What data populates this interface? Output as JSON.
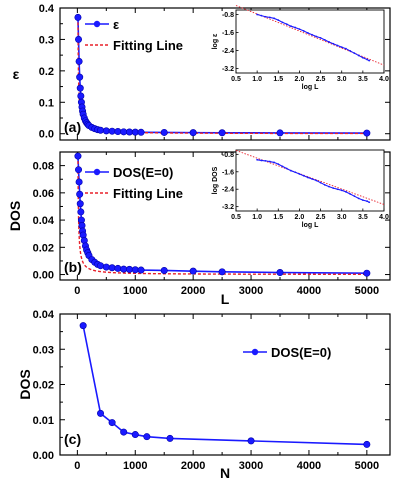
{
  "chart_data": [
    {
      "id": "a",
      "type": "line",
      "panel_label": "(a)",
      "ylabel": "ε",
      "xlabel": "",
      "xlim": [
        -300,
        5400
      ],
      "ylim": [
        -0.02,
        0.4
      ],
      "xticks": [
        0,
        500,
        1000,
        1500,
        2000,
        2500,
        3000,
        3500,
        4000,
        4500,
        5000
      ],
      "yticks": [
        0.0,
        0.1,
        0.2,
        0.3,
        0.4
      ],
      "xtick_labels_shown": false,
      "ytick_decimals": 1,
      "legend": [
        "ε",
        "Fitting Line"
      ],
      "colors": {
        "data": "#1a1aff",
        "fit": "#e8202a"
      },
      "series": [
        {
          "name": "ε",
          "x": [
            10,
            20,
            30,
            40,
            50,
            60,
            70,
            80,
            90,
            100,
            120,
            140,
            160,
            180,
            200,
            250,
            300,
            350,
            400,
            500,
            600,
            700,
            800,
            900,
            1000,
            1100,
            1500,
            2000,
            2500,
            3500,
            5000
          ],
          "values": [
            0.37,
            0.3,
            0.23,
            0.18,
            0.145,
            0.12,
            0.1,
            0.085,
            0.072,
            0.062,
            0.05,
            0.041,
            0.035,
            0.03,
            0.026,
            0.02,
            0.016,
            0.013,
            0.011,
            0.009,
            0.008,
            0.007,
            0.006,
            0.0055,
            0.005,
            0.0045,
            0.004,
            0.0035,
            0.003,
            0.0025,
            0.002
          ]
        }
      ],
      "fit_model": {
        "a": 3.7,
        "p": 1.0,
        "x_from": 10,
        "x_to": 5000
      },
      "inset": {
        "xlabel": "log L",
        "ylabel": "log ε",
        "xlim": [
          0.5,
          4.0
        ],
        "ylim": [
          -3.4,
          -0.6
        ],
        "xticks": [
          0.5,
          1.0,
          1.5,
          2.0,
          2.5,
          3.0,
          3.5,
          4.0
        ],
        "yticks": [
          -0.8,
          -1.6,
          -2.4,
          -3.2
        ],
        "points": [
          [
            1.0,
            -0.8
          ],
          [
            1.1,
            -0.85
          ],
          [
            1.2,
            -0.9
          ],
          [
            1.3,
            -0.93
          ],
          [
            1.4,
            -0.97
          ],
          [
            1.5,
            -1.05
          ],
          [
            1.6,
            -1.15
          ],
          [
            1.7,
            -1.23
          ],
          [
            1.8,
            -1.32
          ],
          [
            1.9,
            -1.38
          ],
          [
            2.0,
            -1.45
          ],
          [
            2.1,
            -1.53
          ],
          [
            2.2,
            -1.62
          ],
          [
            2.3,
            -1.7
          ],
          [
            2.4,
            -1.78
          ],
          [
            2.5,
            -1.84
          ],
          [
            2.6,
            -1.93
          ],
          [
            2.7,
            -2.02
          ],
          [
            2.8,
            -2.1
          ],
          [
            2.9,
            -2.18
          ],
          [
            3.0,
            -2.25
          ],
          [
            3.1,
            -2.32
          ],
          [
            3.2,
            -2.42
          ],
          [
            3.3,
            -2.52
          ],
          [
            3.4,
            -2.62
          ],
          [
            3.5,
            -2.72
          ],
          [
            3.6,
            -2.8
          ],
          [
            3.65,
            -2.85
          ]
        ],
        "fit": [
          [
            0.5,
            -0.4
          ],
          [
            4.0,
            -3.05
          ]
        ]
      }
    },
    {
      "id": "b",
      "type": "line",
      "panel_label": "(b)",
      "ylabel": "DOS",
      "xlabel": "L",
      "xlim": [
        -300,
        5400
      ],
      "ylim": [
        -0.004,
        0.09
      ],
      "xticks": [
        0,
        500,
        1000,
        1500,
        2000,
        2500,
        3000,
        3500,
        4000,
        4500,
        5000
      ],
      "xtick_labels": [
        "0",
        "1000",
        "2000",
        "3000",
        "4000",
        "5000"
      ],
      "yticks": [
        0.0,
        0.02,
        0.04,
        0.06,
        0.08
      ],
      "ytick_decimals": 2,
      "legend": [
        "DOS(E=0)",
        "Fitting Line"
      ],
      "colors": {
        "data": "#1a1aff",
        "fit": "#e8202a"
      },
      "series": [
        {
          "name": "DOS(E=0)",
          "x": [
            10,
            20,
            30,
            40,
            50,
            60,
            70,
            80,
            90,
            100,
            120,
            140,
            160,
            180,
            200,
            250,
            300,
            350,
            400,
            500,
            600,
            700,
            800,
            900,
            1000,
            1100,
            1500,
            2000,
            2500,
            3500,
            5000
          ],
          "values": [
            0.087,
            0.077,
            0.068,
            0.059,
            0.052,
            0.046,
            0.04,
            0.036,
            0.032,
            0.029,
            0.025,
            0.021,
            0.018,
            0.016,
            0.014,
            0.011,
            0.009,
            0.0075,
            0.0065,
            0.0055,
            0.005,
            0.0045,
            0.004,
            0.0038,
            0.0035,
            0.0033,
            0.003,
            0.0025,
            0.002,
            0.0015,
            0.001
          ]
        }
      ],
      "fit_model": {
        "a": 0.87,
        "p": 1.0,
        "x_from": 10,
        "x_to": 5000
      },
      "inset": {
        "xlabel": "log L",
        "ylabel": "log DOS",
        "xlim": [
          0.5,
          4.0
        ],
        "ylim": [
          -3.4,
          -0.6
        ],
        "xticks": [
          0.5,
          1.0,
          1.5,
          2.0,
          2.5,
          3.0,
          3.5,
          4.0
        ],
        "yticks": [
          -0.8,
          -1.6,
          -2.4,
          -3.2
        ],
        "points": [
          [
            1.0,
            -1.05
          ],
          [
            1.1,
            -1.08
          ],
          [
            1.2,
            -1.1
          ],
          [
            1.3,
            -1.13
          ],
          [
            1.4,
            -1.17
          ],
          [
            1.5,
            -1.25
          ],
          [
            1.6,
            -1.35
          ],
          [
            1.7,
            -1.45
          ],
          [
            1.8,
            -1.55
          ],
          [
            1.9,
            -1.62
          ],
          [
            2.0,
            -1.7
          ],
          [
            2.1,
            -1.78
          ],
          [
            2.2,
            -1.86
          ],
          [
            2.3,
            -1.93
          ],
          [
            2.4,
            -2.0
          ],
          [
            2.5,
            -2.1
          ],
          [
            2.6,
            -2.2
          ],
          [
            2.7,
            -2.28
          ],
          [
            2.8,
            -2.35
          ],
          [
            2.9,
            -2.4
          ],
          [
            3.0,
            -2.45
          ],
          [
            3.1,
            -2.52
          ],
          [
            3.2,
            -2.62
          ],
          [
            3.3,
            -2.72
          ],
          [
            3.4,
            -2.82
          ],
          [
            3.5,
            -2.9
          ],
          [
            3.6,
            -2.95
          ],
          [
            3.65,
            -3.0
          ]
        ],
        "fit": [
          [
            0.5,
            -0.62
          ],
          [
            4.0,
            -3.1
          ]
        ]
      }
    },
    {
      "id": "c",
      "type": "line",
      "panel_label": "(c)",
      "ylabel": "DOS",
      "xlabel": "N",
      "xlim": [
        -300,
        5400
      ],
      "ylim": [
        0.0,
        0.04
      ],
      "xticks": [
        0,
        500,
        1000,
        1500,
        2000,
        2500,
        3000,
        3500,
        4000,
        4500,
        5000
      ],
      "xtick_labels": [
        "0",
        "1000",
        "2000",
        "3000",
        "4000",
        "5000"
      ],
      "yticks": [
        0.0,
        0.01,
        0.02,
        0.03,
        0.04
      ],
      "ytick_decimals": 2,
      "legend": [
        "DOS(E=0)"
      ],
      "colors": {
        "data": "#1a1aff"
      },
      "series": [
        {
          "name": "DOS(E=0)",
          "x": [
            100,
            400,
            600,
            800,
            1000,
            1200,
            1600,
            3000,
            5000
          ],
          "values": [
            0.0367,
            0.0118,
            0.0092,
            0.0065,
            0.0058,
            0.0052,
            0.0047,
            0.004,
            0.003
          ]
        }
      ]
    }
  ]
}
